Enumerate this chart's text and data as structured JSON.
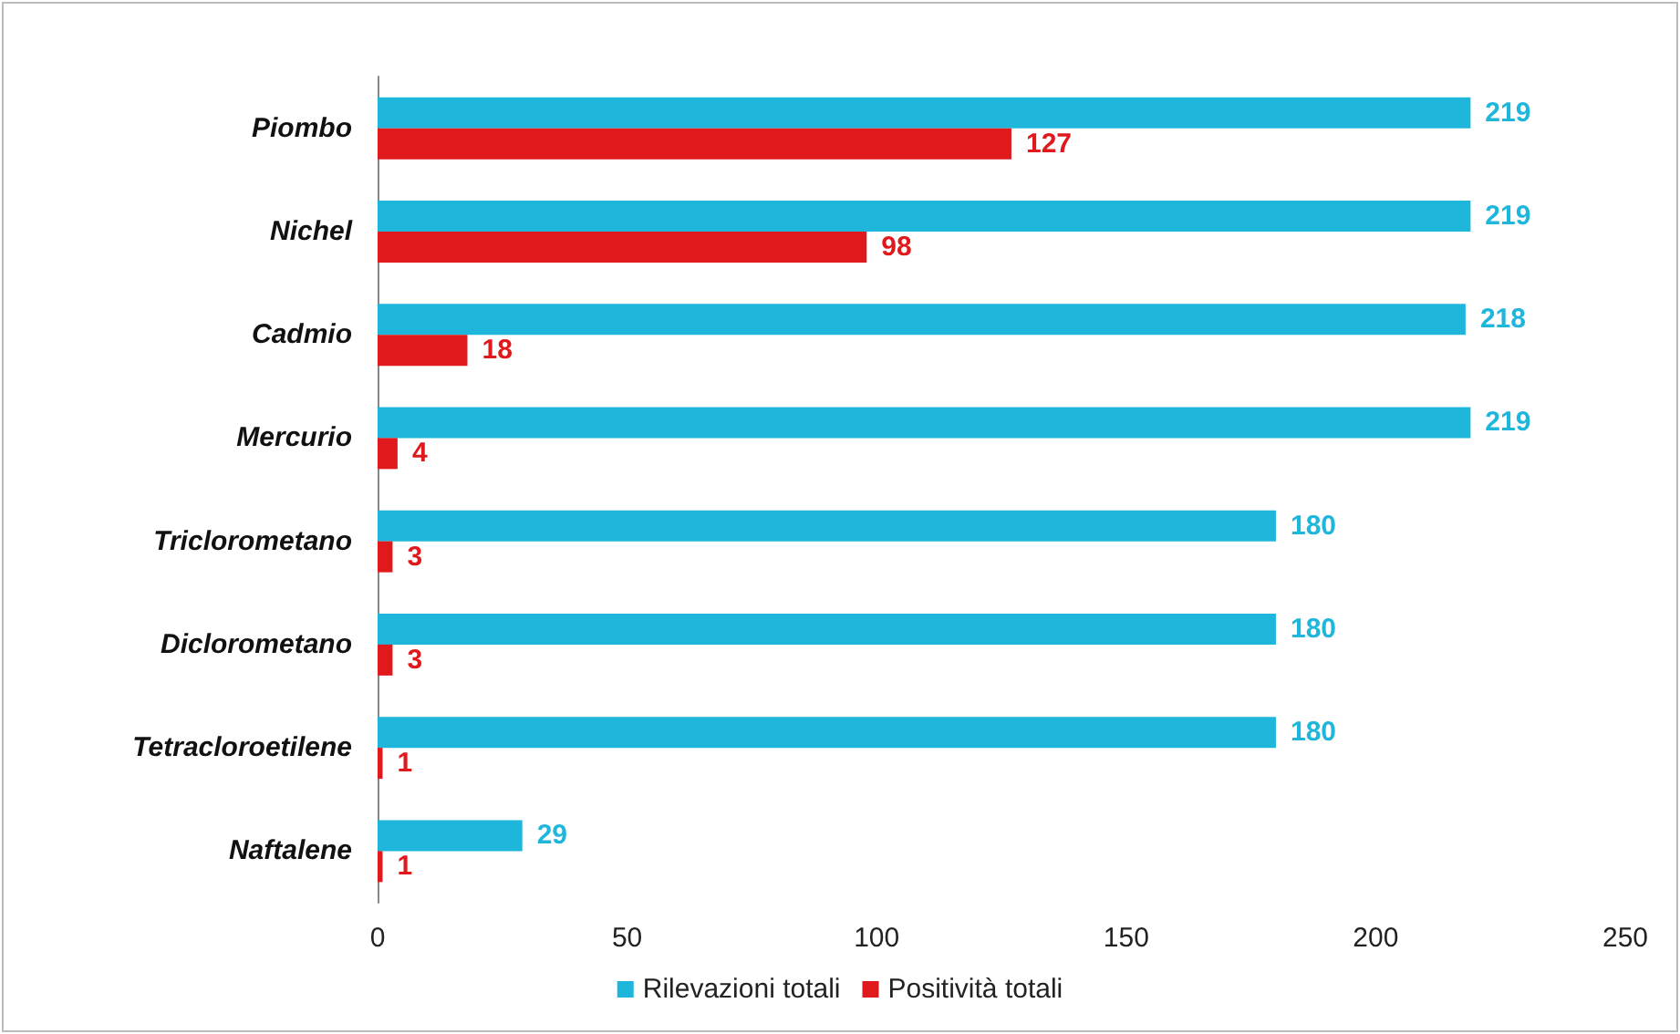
{
  "chart_data": {
    "type": "bar",
    "orientation": "horizontal",
    "categories": [
      "Piombo",
      "Nichel",
      "Cadmio",
      "Mercurio",
      "Triclorometano",
      "Diclorometano",
      "Tetracloroetilene",
      "Naftalene"
    ],
    "series": [
      {
        "name": "Rilevazioni totali",
        "color": "#1fb6dc",
        "values": [
          219,
          219,
          218,
          219,
          180,
          180,
          180,
          29
        ]
      },
      {
        "name": "Positività totali",
        "color": "#e0191c",
        "values": [
          127,
          98,
          18,
          4,
          3,
          3,
          1,
          1
        ]
      }
    ],
    "xlim": [
      0,
      250
    ],
    "xticks": [
      0,
      50,
      100,
      150,
      200,
      250
    ],
    "grid": false,
    "legend": "bottom",
    "data_labels": true
  }
}
